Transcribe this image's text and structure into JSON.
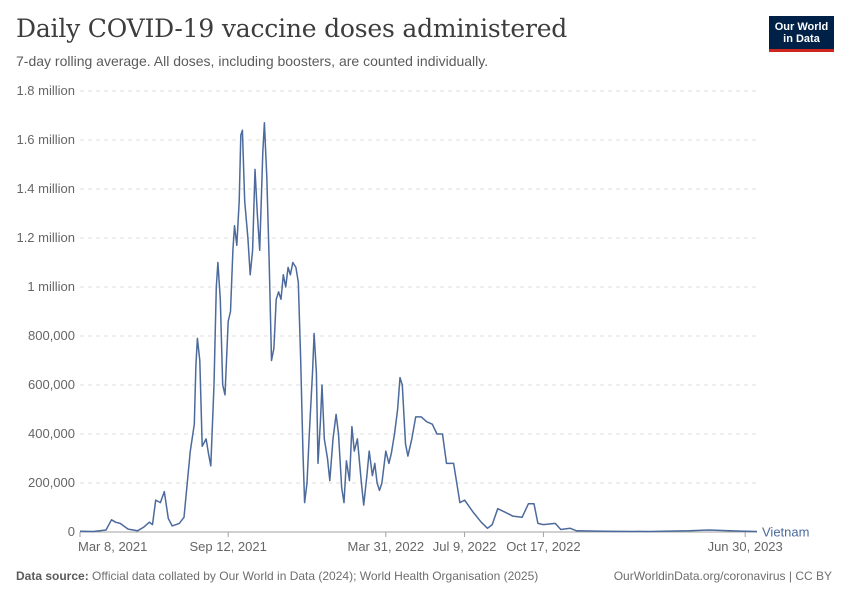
{
  "header": {
    "title": "Daily COVID-19 vaccine doses administered",
    "subtitle": "7-day rolling average. All doses, including boosters, are counted individually.",
    "logo_line1": "Our World",
    "logo_line2": "in Data"
  },
  "footer": {
    "source_label": "Data source:",
    "source_text": "Official data collated by Our World in Data (2024); World Health Organisation (2025)",
    "link_text": "OurWorldinData.org/coronavirus | CC BY"
  },
  "colors": {
    "line": "#4c6a9c",
    "grid": "#dddddd",
    "text": "#5b5b5b",
    "logo_bg": "#002147",
    "logo_accent": "#ce261e"
  },
  "chart_data": {
    "type": "line",
    "title": "Daily COVID-19 vaccine doses administered",
    "subtitle": "7-day rolling average. All doses, including boosters, are counted individually.",
    "xlabel": "",
    "ylabel": "",
    "x_range": [
      "2021-03-08",
      "2023-07-15"
    ],
    "ylim": [
      0,
      1800000
    ],
    "grid": "horizontal dashed",
    "y_ticks": [
      {
        "value": 0,
        "label": "0"
      },
      {
        "value": 200000,
        "label": "200,000"
      },
      {
        "value": 400000,
        "label": "400,000"
      },
      {
        "value": 600000,
        "label": "600,000"
      },
      {
        "value": 800000,
        "label": "800,000"
      },
      {
        "value": 1000000,
        "label": "1 million"
      },
      {
        "value": 1200000,
        "label": "1.2 million"
      },
      {
        "value": 1400000,
        "label": "1.4 million"
      },
      {
        "value": 1600000,
        "label": "1.6 million"
      },
      {
        "value": 1800000,
        "label": "1.8 million"
      }
    ],
    "x_ticks": [
      {
        "date": "2021-03-08",
        "label": "Mar 8, 2021"
      },
      {
        "date": "2021-09-12",
        "label": "Sep 12, 2021"
      },
      {
        "date": "2022-03-31",
        "label": "Mar 31, 2022"
      },
      {
        "date": "2022-07-09",
        "label": "Jul 9, 2022"
      },
      {
        "date": "2022-10-17",
        "label": "Oct 17, 2022"
      },
      {
        "date": "2023-06-30",
        "label": "Jun 30, 2023"
      }
    ],
    "series": [
      {
        "name": "Vietnam",
        "points": [
          [
            "2021-03-08",
            3000
          ],
          [
            "2021-03-25",
            2000
          ],
          [
            "2021-04-10",
            8000
          ],
          [
            "2021-04-17",
            50000
          ],
          [
            "2021-04-22",
            40000
          ],
          [
            "2021-04-28",
            35000
          ],
          [
            "2021-05-08",
            12000
          ],
          [
            "2021-05-20",
            5000
          ],
          [
            "2021-05-28",
            20000
          ],
          [
            "2021-06-04",
            40000
          ],
          [
            "2021-06-08",
            30000
          ],
          [
            "2021-06-12",
            130000
          ],
          [
            "2021-06-18",
            120000
          ],
          [
            "2021-06-23",
            165000
          ],
          [
            "2021-06-28",
            55000
          ],
          [
            "2021-07-03",
            25000
          ],
          [
            "2021-07-12",
            35000
          ],
          [
            "2021-07-18",
            60000
          ],
          [
            "2021-07-26",
            330000
          ],
          [
            "2021-07-31",
            440000
          ],
          [
            "2021-08-02",
            680000
          ],
          [
            "2021-08-04",
            790000
          ],
          [
            "2021-08-07",
            700000
          ],
          [
            "2021-08-10",
            350000
          ],
          [
            "2021-08-15",
            380000
          ],
          [
            "2021-08-18",
            320000
          ],
          [
            "2021-08-21",
            270000
          ],
          [
            "2021-08-25",
            600000
          ],
          [
            "2021-08-28",
            1000000
          ],
          [
            "2021-08-30",
            1100000
          ],
          [
            "2021-09-02",
            950000
          ],
          [
            "2021-09-05",
            600000
          ],
          [
            "2021-09-08",
            560000
          ],
          [
            "2021-09-12",
            860000
          ],
          [
            "2021-09-15",
            900000
          ],
          [
            "2021-09-18",
            1150000
          ],
          [
            "2021-09-20",
            1250000
          ],
          [
            "2021-09-23",
            1170000
          ],
          [
            "2021-09-26",
            1350000
          ],
          [
            "2021-09-28",
            1620000
          ],
          [
            "2021-09-30",
            1640000
          ],
          [
            "2021-10-03",
            1350000
          ],
          [
            "2021-10-07",
            1200000
          ],
          [
            "2021-10-10",
            1050000
          ],
          [
            "2021-10-13",
            1150000
          ],
          [
            "2021-10-16",
            1480000
          ],
          [
            "2021-10-19",
            1300000
          ],
          [
            "2021-10-22",
            1150000
          ],
          [
            "2021-10-26",
            1550000
          ],
          [
            "2021-10-28",
            1670000
          ],
          [
            "2021-10-31",
            1450000
          ],
          [
            "2021-11-03",
            1100000
          ],
          [
            "2021-11-06",
            700000
          ],
          [
            "2021-11-09",
            750000
          ],
          [
            "2021-11-12",
            950000
          ],
          [
            "2021-11-15",
            980000
          ],
          [
            "2021-11-18",
            950000
          ],
          [
            "2021-11-21",
            1050000
          ],
          [
            "2021-11-24",
            1000000
          ],
          [
            "2021-11-27",
            1080000
          ],
          [
            "2021-11-30",
            1050000
          ],
          [
            "2021-12-03",
            1100000
          ],
          [
            "2021-12-07",
            1080000
          ],
          [
            "2021-12-10",
            1020000
          ],
          [
            "2021-12-13",
            700000
          ],
          [
            "2021-12-16",
            320000
          ],
          [
            "2021-12-18",
            120000
          ],
          [
            "2021-12-21",
            200000
          ],
          [
            "2021-12-24",
            400000
          ],
          [
            "2021-12-28",
            650000
          ],
          [
            "2021-12-30",
            810000
          ],
          [
            "2022-01-02",
            650000
          ],
          [
            "2022-01-04",
            280000
          ],
          [
            "2022-01-07",
            450000
          ],
          [
            "2022-01-09",
            600000
          ],
          [
            "2022-01-12",
            380000
          ],
          [
            "2022-01-16",
            300000
          ],
          [
            "2022-01-19",
            210000
          ],
          [
            "2022-01-23",
            380000
          ],
          [
            "2022-01-27",
            480000
          ],
          [
            "2022-01-30",
            400000
          ],
          [
            "2022-02-03",
            180000
          ],
          [
            "2022-02-06",
            120000
          ],
          [
            "2022-02-09",
            290000
          ],
          [
            "2022-02-13",
            210000
          ],
          [
            "2022-02-16",
            430000
          ],
          [
            "2022-02-19",
            330000
          ],
          [
            "2022-02-23",
            380000
          ],
          [
            "2022-02-28",
            200000
          ],
          [
            "2022-03-03",
            110000
          ],
          [
            "2022-03-07",
            230000
          ],
          [
            "2022-03-10",
            330000
          ],
          [
            "2022-03-14",
            230000
          ],
          [
            "2022-03-17",
            280000
          ],
          [
            "2022-03-20",
            200000
          ],
          [
            "2022-03-23",
            170000
          ],
          [
            "2022-03-26",
            200000
          ],
          [
            "2022-03-31",
            330000
          ],
          [
            "2022-04-04",
            280000
          ],
          [
            "2022-04-07",
            320000
          ],
          [
            "2022-04-11",
            400000
          ],
          [
            "2022-04-15",
            500000
          ],
          [
            "2022-04-18",
            630000
          ],
          [
            "2022-04-21",
            600000
          ],
          [
            "2022-04-25",
            360000
          ],
          [
            "2022-04-28",
            310000
          ],
          [
            "2022-05-03",
            380000
          ],
          [
            "2022-05-08",
            470000
          ],
          [
            "2022-05-15",
            470000
          ],
          [
            "2022-05-22",
            450000
          ],
          [
            "2022-05-29",
            440000
          ],
          [
            "2022-06-04",
            400000
          ],
          [
            "2022-06-11",
            400000
          ],
          [
            "2022-06-16",
            280000
          ],
          [
            "2022-06-25",
            280000
          ],
          [
            "2022-07-03",
            120000
          ],
          [
            "2022-07-09",
            130000
          ],
          [
            "2022-07-20",
            80000
          ],
          [
            "2022-07-30",
            40000
          ],
          [
            "2022-08-07",
            15000
          ],
          [
            "2022-08-13",
            30000
          ],
          [
            "2022-08-20",
            95000
          ],
          [
            "2022-08-30",
            80000
          ],
          [
            "2022-09-08",
            65000
          ],
          [
            "2022-09-20",
            60000
          ],
          [
            "2022-09-28",
            115000
          ],
          [
            "2022-10-05",
            115000
          ],
          [
            "2022-10-10",
            35000
          ],
          [
            "2022-10-17",
            30000
          ],
          [
            "2022-11-01",
            35000
          ],
          [
            "2022-11-08",
            10000
          ],
          [
            "2022-11-20",
            15000
          ],
          [
            "2022-11-28",
            5000
          ],
          [
            "2023-01-01",
            3000
          ],
          [
            "2023-03-01",
            2000
          ],
          [
            "2023-04-20",
            5000
          ],
          [
            "2023-05-15",
            8000
          ],
          [
            "2023-06-10",
            5000
          ],
          [
            "2023-06-30",
            3000
          ],
          [
            "2023-07-15",
            2000
          ]
        ]
      }
    ]
  }
}
